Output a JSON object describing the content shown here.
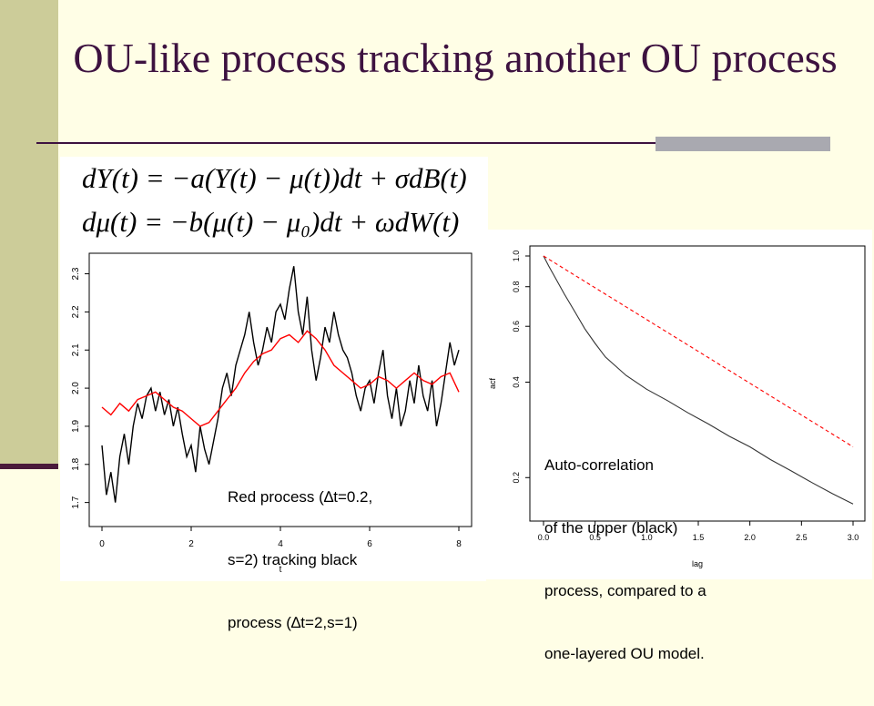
{
  "slide": {
    "title": "OU-like process tracking another OU process",
    "equation_1": "dY(t) = −a(Y(t) − μ(t))dt + σdB(t)",
    "equation_2": "dμ(t) = −b(μ(t) − μ₀)dt + ωdW(t)"
  },
  "left_plot": {
    "caption_lines": [
      "Red process (∆t=0.2,",
      "s=2) tracking black",
      "process (∆t=2,s=1)"
    ]
  },
  "right_plot": {
    "caption_lines": [
      "Auto-correlation",
      "of the upper (black)",
      "process, compared to a",
      "one-layered OU model."
    ]
  },
  "colors": {
    "title": "#3d1240",
    "black_series": "#000000",
    "red_series": "#ff0000",
    "background": "#fffee6",
    "sidebar": "#cccc99"
  },
  "chart_data": [
    {
      "type": "line",
      "title": "",
      "xlabel": "t",
      "ylabel": "",
      "xlim": [
        0,
        8
      ],
      "ylim": [
        1.68,
        2.33
      ],
      "x_ticks": [
        "0",
        "2",
        "4",
        "6",
        "8"
      ],
      "y_ticks": [
        "1.7",
        "1.8",
        "1.9",
        "2.0",
        "2.1",
        "2.2",
        "2.3"
      ],
      "grid": false,
      "series": [
        {
          "color": "#000000",
          "x": [
            0,
            0.1,
            0.2,
            0.3,
            0.4,
            0.5,
            0.6,
            0.7,
            0.8,
            0.9,
            1.0,
            1.1,
            1.2,
            1.3,
            1.4,
            1.5,
            1.6,
            1.7,
            1.8,
            1.9,
            2.0,
            2.1,
            2.2,
            2.3,
            2.4,
            2.5,
            2.6,
            2.7,
            2.8,
            2.9,
            3.0,
            3.1,
            3.2,
            3.3,
            3.4,
            3.5,
            3.6,
            3.7,
            3.8,
            3.9,
            4.0,
            4.1,
            4.2,
            4.3,
            4.4,
            4.5,
            4.6,
            4.7,
            4.8,
            4.9,
            5.0,
            5.1,
            5.2,
            5.3,
            5.4,
            5.5,
            5.6,
            5.7,
            5.8,
            5.9,
            6.0,
            6.1,
            6.2,
            6.3,
            6.4,
            6.5,
            6.6,
            6.7,
            6.8,
            6.9,
            7.0,
            7.1,
            7.2,
            7.3,
            7.4,
            7.5,
            7.6,
            7.7,
            7.8,
            7.9,
            8.0
          ],
          "y": [
            1.85,
            1.72,
            1.78,
            1.7,
            1.82,
            1.88,
            1.8,
            1.9,
            1.96,
            1.92,
            1.98,
            2.0,
            1.94,
            1.99,
            1.93,
            1.97,
            1.9,
            1.95,
            1.88,
            1.82,
            1.85,
            1.78,
            1.9,
            1.84,
            1.8,
            1.86,
            1.92,
            2.0,
            2.04,
            1.98,
            2.06,
            2.1,
            2.14,
            2.2,
            2.12,
            2.06,
            2.1,
            2.16,
            2.12,
            2.2,
            2.22,
            2.18,
            2.26,
            2.32,
            2.2,
            2.14,
            2.24,
            2.1,
            2.02,
            2.08,
            2.16,
            2.12,
            2.2,
            2.14,
            2.1,
            2.08,
            2.04,
            1.98,
            1.94,
            2.0,
            2.02,
            1.96,
            2.04,
            2.1,
            1.98,
            1.92,
            2.0,
            1.9,
            1.94,
            2.02,
            1.96,
            2.06,
            1.98,
            1.94,
            2.02,
            1.9,
            1.96,
            2.04,
            2.12,
            2.06,
            2.1
          ]
        },
        {
          "color": "#ff0000",
          "x": [
            0,
            0.2,
            0.4,
            0.6,
            0.8,
            1.0,
            1.2,
            1.4,
            1.6,
            1.8,
            2.0,
            2.2,
            2.4,
            2.6,
            2.8,
            3.0,
            3.2,
            3.4,
            3.6,
            3.8,
            4.0,
            4.2,
            4.4,
            4.6,
            4.8,
            5.0,
            5.2,
            5.4,
            5.6,
            5.8,
            6.0,
            6.2,
            6.4,
            6.6,
            6.8,
            7.0,
            7.2,
            7.4,
            7.6,
            7.8,
            8.0
          ],
          "y": [
            1.95,
            1.93,
            1.96,
            1.94,
            1.97,
            1.98,
            1.99,
            1.97,
            1.95,
            1.94,
            1.92,
            1.9,
            1.91,
            1.94,
            1.97,
            2.0,
            2.04,
            2.07,
            2.09,
            2.1,
            2.13,
            2.14,
            2.12,
            2.15,
            2.13,
            2.1,
            2.06,
            2.04,
            2.02,
            2.0,
            2.01,
            2.03,
            2.02,
            2.0,
            2.02,
            2.04,
            2.02,
            2.01,
            2.03,
            2.04,
            1.99
          ]
        }
      ]
    },
    {
      "type": "line",
      "title": "",
      "xlabel": "lag",
      "ylabel": "acf",
      "xlim": [
        0,
        3
      ],
      "ylim": [
        0.16,
        1.0
      ],
      "y_scale": "log",
      "x_ticks": [
        "0.0",
        "0.5",
        "1.0",
        "1.5",
        "2.0",
        "2.5",
        "3.0"
      ],
      "y_ticks": [
        "0.2",
        "0.4",
        "0.6",
        "0.8",
        "1.0"
      ],
      "grid": false,
      "series": [
        {
          "color": "#333333",
          "style": "solid",
          "x": [
            0,
            0.05,
            0.1,
            0.2,
            0.3,
            0.4,
            0.5,
            0.6,
            0.8,
            1.0,
            1.2,
            1.4,
            1.6,
            1.8,
            2.0,
            2.2,
            2.4,
            2.6,
            2.8,
            3.0
          ],
          "y": [
            1.0,
            0.93,
            0.87,
            0.76,
            0.67,
            0.59,
            0.53,
            0.48,
            0.42,
            0.38,
            0.35,
            0.32,
            0.295,
            0.27,
            0.25,
            0.228,
            0.21,
            0.193,
            0.178,
            0.165
          ]
        },
        {
          "color": "#ff0000",
          "style": "dashed",
          "x": [
            0,
            3.0
          ],
          "y": [
            1.0,
            0.25
          ]
        }
      ]
    }
  ]
}
